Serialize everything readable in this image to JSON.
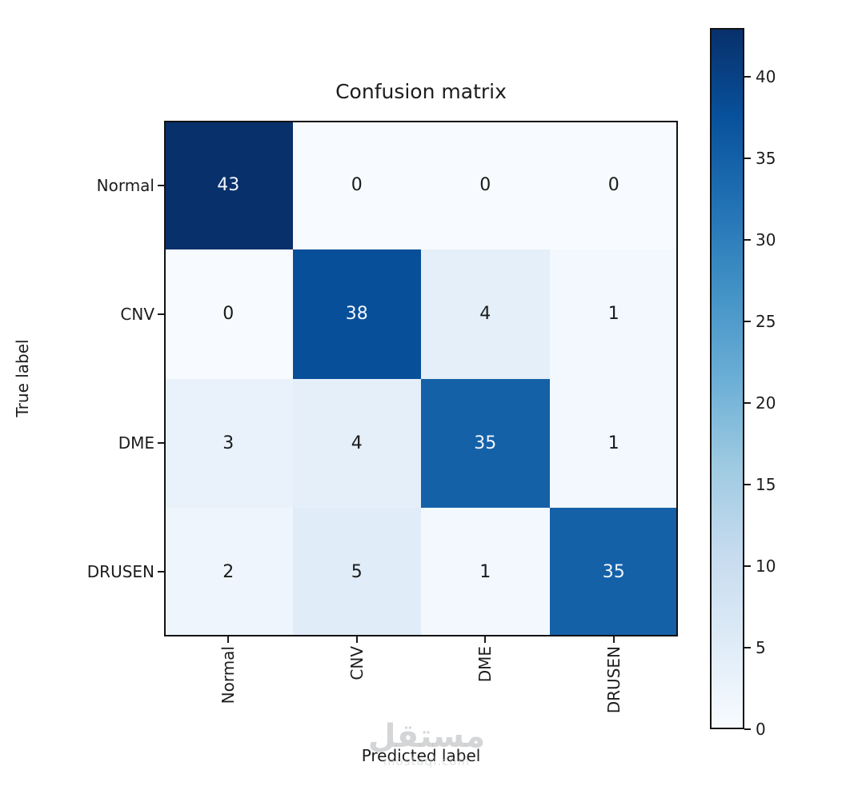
{
  "chart_data": {
    "type": "heatmap",
    "title": "Confusion matrix",
    "xlabel": "Predicted label",
    "ylabel": "True label",
    "x_categories": [
      "Normal",
      "CNV",
      "DME",
      "DRUSEN"
    ],
    "y_categories": [
      "Normal",
      "CNV",
      "DME",
      "DRUSEN"
    ],
    "matrix": [
      [
        43,
        0,
        0,
        0
      ],
      [
        0,
        38,
        4,
        1
      ],
      [
        3,
        4,
        35,
        1
      ],
      [
        2,
        5,
        1,
        35
      ]
    ],
    "vmin": 0,
    "vmax": 43,
    "colormap": "Blues",
    "colorbar_ticks": [
      0,
      5,
      10,
      15,
      20,
      25,
      30,
      35,
      40
    ],
    "colorbar_position": "right",
    "grid": false,
    "text_color_threshold": 21.5
  },
  "watermark": {
    "text_arabic": "مستقل",
    "text_latin": "mostaql.com"
  },
  "colors": {
    "colormap_stops": [
      "#f7fbff",
      "#deebf7",
      "#c6dbef",
      "#9ecae1",
      "#6baed6",
      "#4292c6",
      "#2171b5",
      "#08519c",
      "#08306b"
    ],
    "frame": "#121212",
    "text": "#1c1c1c",
    "cell_text_light": "#f2f6fc",
    "cell_text_dark": "#1a1a1a",
    "background": "#ffffff"
  }
}
